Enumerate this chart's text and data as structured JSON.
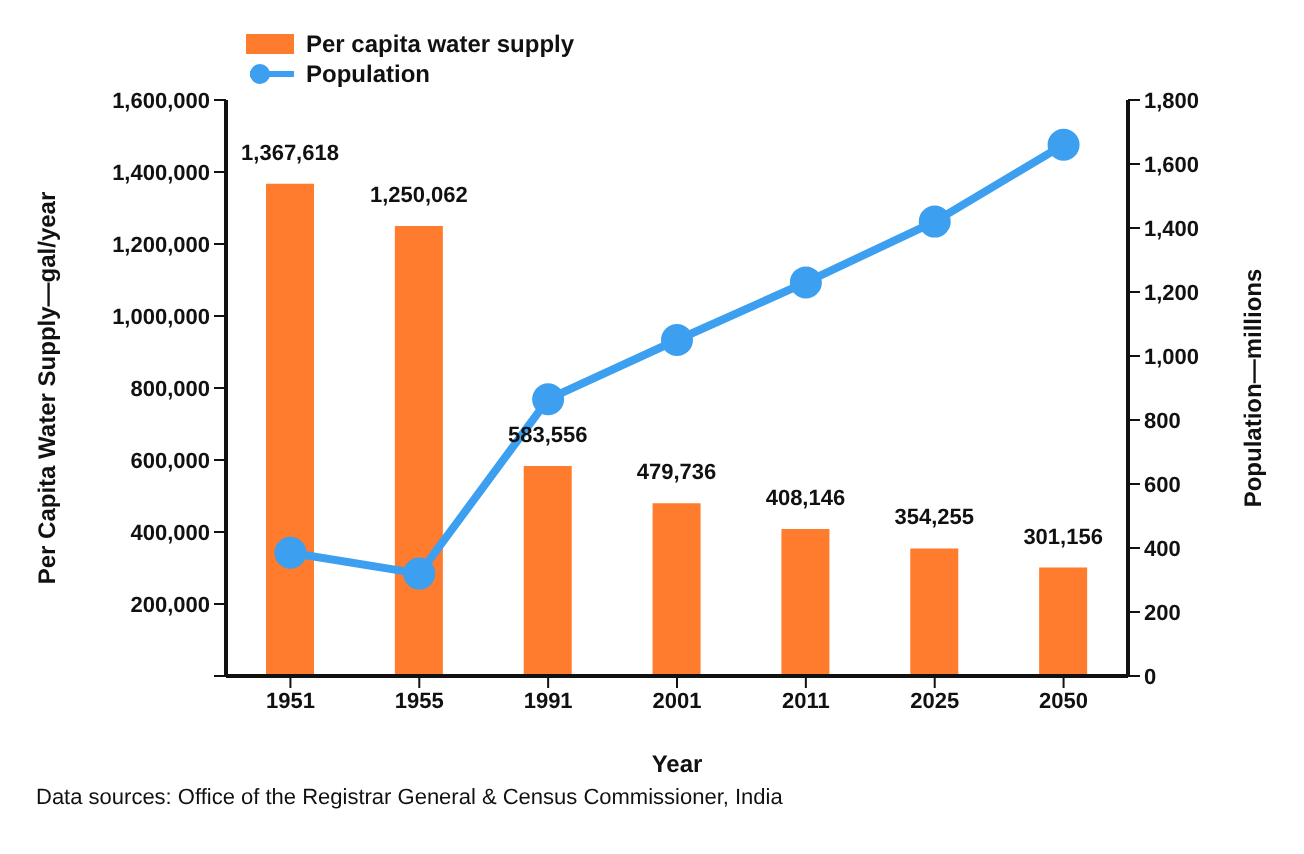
{
  "chart_data": {
    "type": "bar",
    "xlabel": "Year",
    "ylabel": "Per Capita Water Supply—gal/year",
    "y2label": "Population—millions",
    "categories": [
      "1951",
      "1955",
      "1991",
      "2001",
      "2011",
      "2025",
      "2050"
    ],
    "series": [
      {
        "name": "Per capita water supply",
        "color": "#ff7b2e",
        "values": [
          1367618,
          1250062,
          583556,
          479736,
          408146,
          354255,
          301156
        ],
        "value_labels": [
          "1,367,618",
          "1,250,062",
          "583,556",
          "479,736",
          "408,146",
          "354,255",
          "301,156"
        ]
      },
      {
        "name": "Population",
        "type": "line",
        "axis": "y2",
        "color": "#3d9ff0",
        "marker": "circle",
        "values": [
          385,
          320,
          865,
          1050,
          1230,
          1420,
          1660
        ]
      }
    ],
    "ylim": [
      0,
      1600000
    ],
    "yticks": [
      {
        "value": 0,
        "label": null
      },
      {
        "value": 200000,
        "label": "200,000"
      },
      {
        "value": 400000,
        "label": "400,000"
      },
      {
        "value": 600000,
        "label": "600,000"
      },
      {
        "value": 800000,
        "label": "800,000"
      },
      {
        "value": 1000000,
        "label": "1,000,000"
      },
      {
        "value": 1200000,
        "label": "1,200,000"
      },
      {
        "value": 1400000,
        "label": "1,400,000"
      },
      {
        "value": 1600000,
        "label": "1,600,000"
      }
    ],
    "y2lim": [
      0,
      1800
    ],
    "y2ticks": [
      0,
      200,
      400,
      600,
      800,
      {
        "value": 1000,
        "label": "1,000"
      },
      {
        "value": 1200,
        "label": "1,200"
      },
      {
        "value": 1400,
        "label": "1,400"
      },
      {
        "value": 1600,
        "label": "1,600"
      },
      {
        "value": 1800,
        "label": "1,800"
      }
    ],
    "legend": "top left",
    "grid": false,
    "annotations": [
      "Data sources: Office of the Registrar General & Census Commissioner, India"
    ]
  }
}
